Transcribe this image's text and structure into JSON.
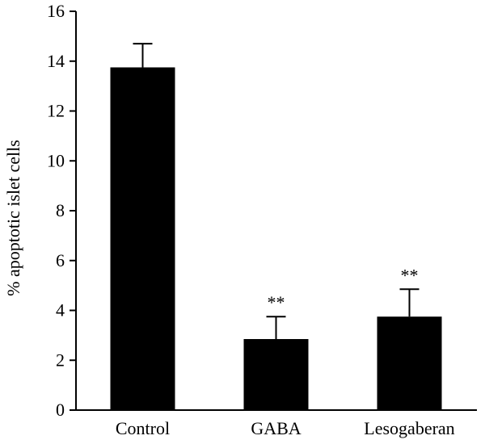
{
  "chart_data": {
    "type": "bar",
    "categories": [
      "Control",
      "GABA",
      "Lesogaberan"
    ],
    "values": [
      13.75,
      2.85,
      3.75
    ],
    "errors": [
      0.95,
      0.9,
      1.1
    ],
    "significance": [
      "",
      "**",
      "**"
    ],
    "title": "",
    "xlabel": "",
    "ylabel": "% apoptotic islet cells",
    "ylim": [
      0,
      16
    ],
    "yticks": [
      "0",
      "2",
      "4",
      "6",
      "8",
      "10",
      "12",
      "14",
      "16"
    ],
    "grid": false,
    "legend": "none",
    "bar_color": "#000000"
  }
}
